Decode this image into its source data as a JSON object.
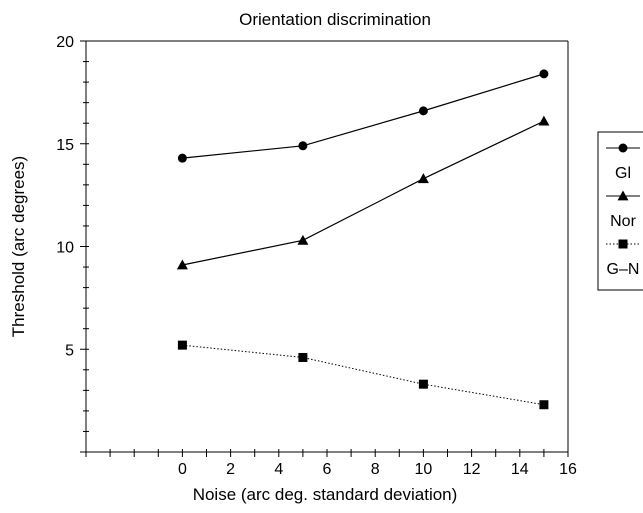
{
  "chart_data": {
    "type": "line",
    "title": "Orientation discrimination",
    "xlabel": "Noise (arc deg. standard deviation)",
    "ylabel": "Threshold  (arc degrees)",
    "xlim": [
      -4,
      16
    ],
    "ylim": [
      0,
      20
    ],
    "xticks": [
      0,
      2,
      4,
      6,
      8,
      10,
      12,
      14,
      16
    ],
    "yticks": [
      5,
      10,
      15,
      20
    ],
    "grid": false,
    "legend_position": "right",
    "series": [
      {
        "name": "Gl",
        "marker": "circle",
        "line": "solid",
        "color": "#000000",
        "points": [
          {
            "x": 0,
            "y": 14.3
          },
          {
            "x": 5,
            "y": 14.9
          },
          {
            "x": 10,
            "y": 16.6
          },
          {
            "x": 15,
            "y": 18.4
          }
        ]
      },
      {
        "name": "Nor",
        "marker": "triangle",
        "line": "solid",
        "color": "#000000",
        "points": [
          {
            "x": 0,
            "y": 9.1
          },
          {
            "x": 5,
            "y": 10.3
          },
          {
            "x": 10,
            "y": 13.3
          },
          {
            "x": 15,
            "y": 16.1
          }
        ]
      },
      {
        "name": "G–N",
        "marker": "square",
        "line": "dotted",
        "color": "#000000",
        "points": [
          {
            "x": 0,
            "y": 5.2
          },
          {
            "x": 5,
            "y": 4.6
          },
          {
            "x": 10,
            "y": 3.3
          },
          {
            "x": 15,
            "y": 2.3
          }
        ]
      }
    ]
  }
}
